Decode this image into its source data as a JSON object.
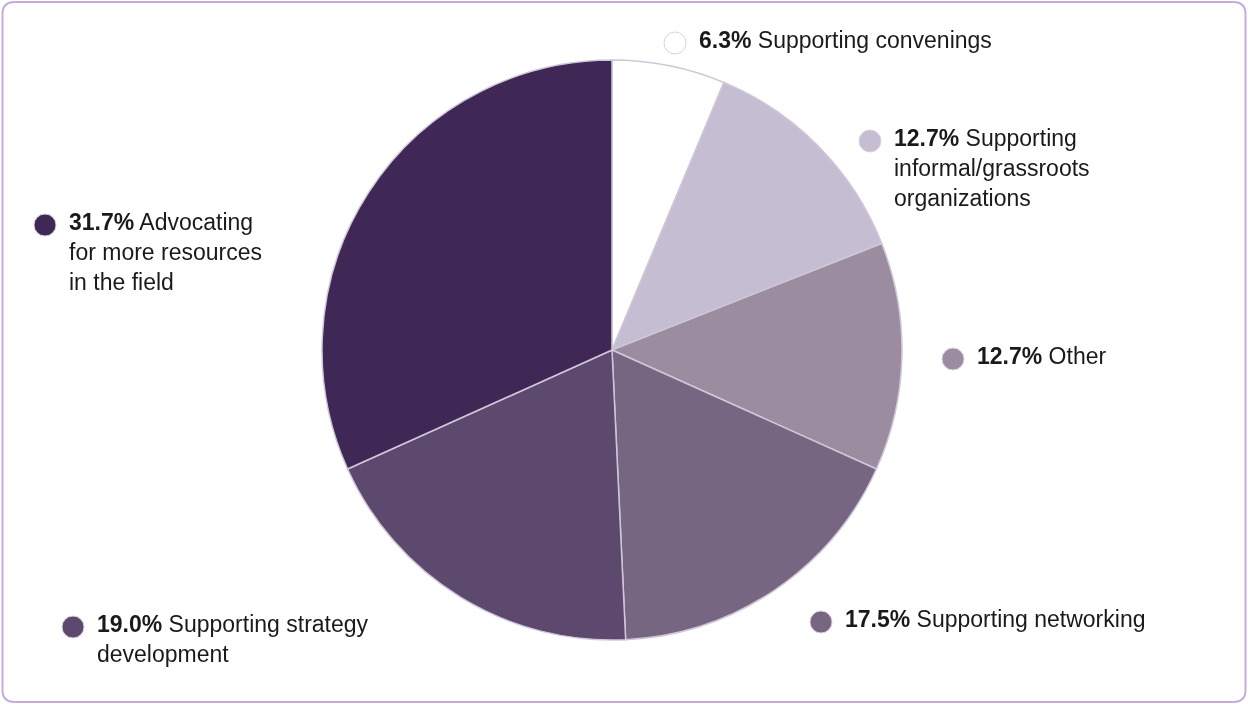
{
  "chart_data": {
    "type": "pie",
    "categories": [
      "Supporting convenings",
      "Supporting informal/grassroots organizations",
      "Other",
      "Supporting networking",
      "Supporting strategy development",
      "Advocating for more resources in the field"
    ],
    "values": [
      6.3,
      12.7,
      12.7,
      17.5,
      19.0,
      31.7
    ],
    "colors": [
      "#ffffff",
      "#c5bdd1",
      "#9b8ca0",
      "#776681",
      "#5d486e",
      "#3f2856"
    ],
    "value_labels": [
      "6.3%",
      "12.7%",
      "12.7%",
      "17.5%",
      "19.0%",
      "31.7%"
    ]
  }
}
